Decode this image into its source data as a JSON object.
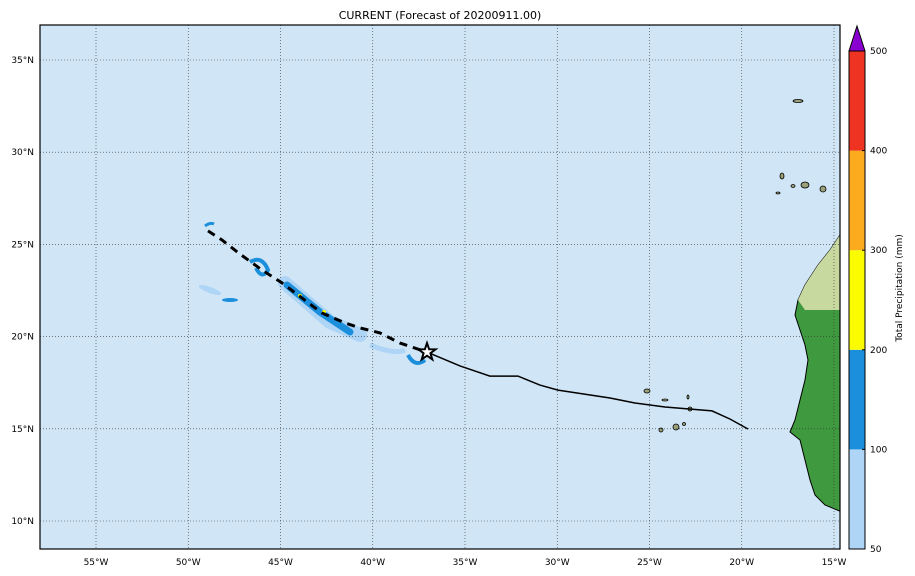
{
  "title": "CURRENT (Forecast of 20200911.00)",
  "map": {
    "lon_range": [
      -58,
      -14.7
    ],
    "lat_range": [
      8.4,
      36.9
    ],
    "lon_ticks": [
      -55,
      -50,
      -45,
      -40,
      -35,
      -30,
      -25,
      -20,
      -15
    ],
    "lon_labels": [
      "55°W",
      "50°W",
      "45°W",
      "40°W",
      "35°W",
      "30°W",
      "25°W",
      "20°W",
      "15°W"
    ],
    "lat_ticks": [
      35,
      30,
      25,
      20,
      15,
      10
    ],
    "lat_labels": [
      "35°N",
      "30°N",
      "25°N",
      "20°N",
      "15°N",
      "10°N"
    ],
    "ocean_color": "#d0e6f6",
    "past_track": [
      [
        -48.93,
        25.73
      ],
      [
        -48.17,
        25.24
      ],
      [
        -47.2,
        24.48
      ],
      [
        -46.0,
        23.61
      ],
      [
        -44.92,
        22.91
      ],
      [
        -43.83,
        22.09
      ],
      [
        -42.75,
        21.28
      ],
      [
        -41.5,
        20.74
      ],
      [
        -40.69,
        20.47
      ],
      [
        -39.61,
        20.2
      ],
      [
        -38.52,
        19.65
      ],
      [
        -37.06,
        19.16
      ]
    ],
    "forecast_track": [
      [
        -37.06,
        19.16
      ],
      [
        -35.27,
        18.41
      ],
      [
        -33.65,
        17.86
      ],
      [
        -32.13,
        17.86
      ],
      [
        -30.94,
        17.37
      ],
      [
        -29.96,
        17.1
      ],
      [
        -27.14,
        16.67
      ],
      [
        -25.79,
        16.4
      ],
      [
        -24.16,
        16.18
      ],
      [
        -21.61,
        15.97
      ],
      [
        -20.64,
        15.53
      ],
      [
        -19.66,
        14.99
      ]
    ],
    "current_position": [
      -37.06,
      19.16
    ]
  },
  "colorbar": {
    "label": "Total Precipitation (mm)",
    "levels": [
      "50",
      "100",
      "200",
      "300",
      "400",
      "500"
    ],
    "colors": [
      "#aed4f6",
      "#1c8fdc",
      "#fcfc00",
      "#fcab1f",
      "#ee3322"
    ],
    "extend_color": "#8a00d0"
  }
}
